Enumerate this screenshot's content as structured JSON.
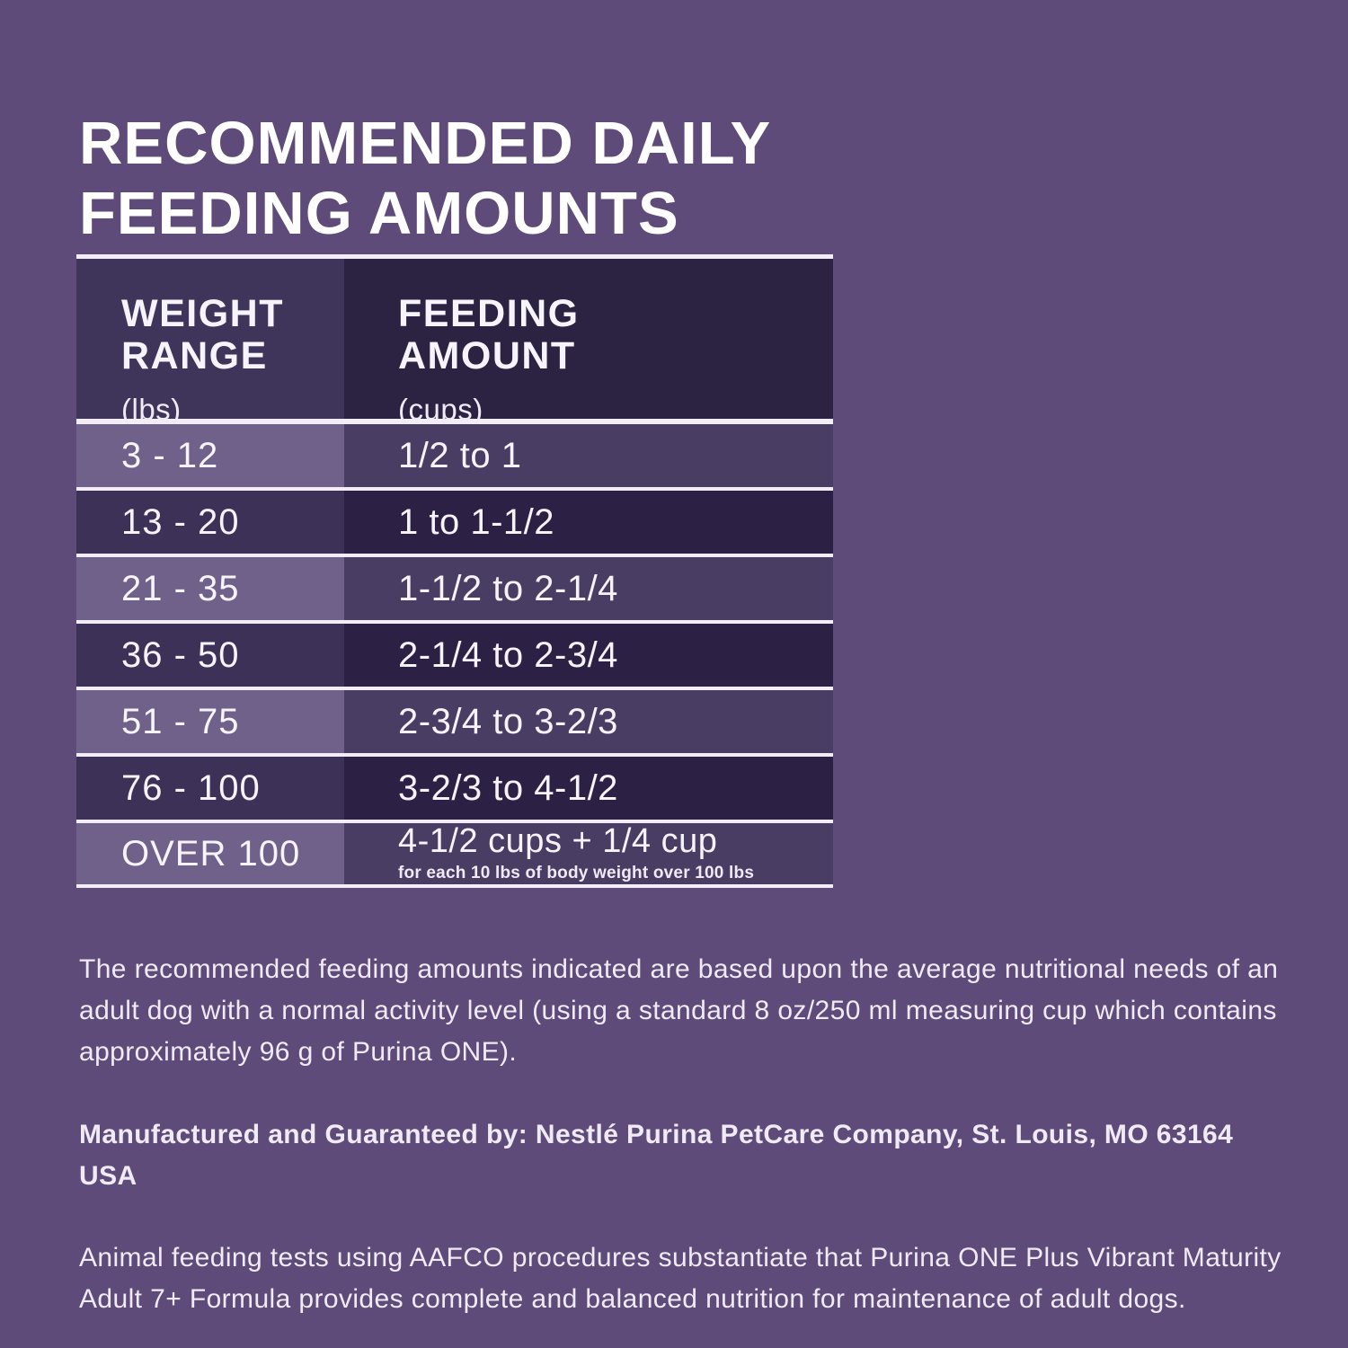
{
  "title": "RECOMMENDED DAILY\nFEEDING AMOUNTS",
  "colors": {
    "page_background": "#5E4B79",
    "header_left_cell": "#3F3459",
    "header_right_cell": "#2C2242",
    "row_light_left": "#6F6189",
    "row_light_right": "#4A3D64",
    "row_dark_left": "#3E3158",
    "row_dark_right": "#2C2144",
    "rule_lines": "#F2EDF7",
    "text": "#FFFFFF"
  },
  "table": {
    "header": {
      "col1_title": "WEIGHT\nRANGE",
      "col1_unit": "(lbs)",
      "col2_title": "FEEDING\nAMOUNT",
      "col2_unit": "(cups)"
    },
    "rows": [
      {
        "weight": "3 - 12",
        "amount": "1/2 to 1"
      },
      {
        "weight": "13 - 20",
        "amount": "1 to 1-1/2"
      },
      {
        "weight": "21 - 35",
        "amount": "1-1/2 to 2-1/4"
      },
      {
        "weight": "36 - 50",
        "amount": "2-1/4 to 2-3/4"
      },
      {
        "weight": "51 - 75",
        "amount": "2-3/4 to 3-2/3"
      },
      {
        "weight": "76 - 100",
        "amount": "3-2/3 to 4-1/2"
      },
      {
        "weight": "OVER 100",
        "amount": "4-1/2 cups + 1/4 cup",
        "note": "for each 10 lbs of body weight over 100 lbs"
      }
    ]
  },
  "notes": {
    "paragraph1": "The recommended feeding amounts indicated are based upon the average nutritional needs of an adult dog with a normal activity level (using a standard 8 oz/250 ml measuring cup which contains approximately 96 g of Purina ONE).",
    "paragraph2": "Manufactured and Guaranteed by: Nestlé Purina PetCare Company, St. Louis, MO 63164 USA",
    "paragraph3": "Animal feeding tests using AAFCO procedures substantiate that Purina ONE Plus Vibrant Maturity Adult 7+ Formula provides complete and balanced nutrition for maintenance of adult dogs."
  }
}
